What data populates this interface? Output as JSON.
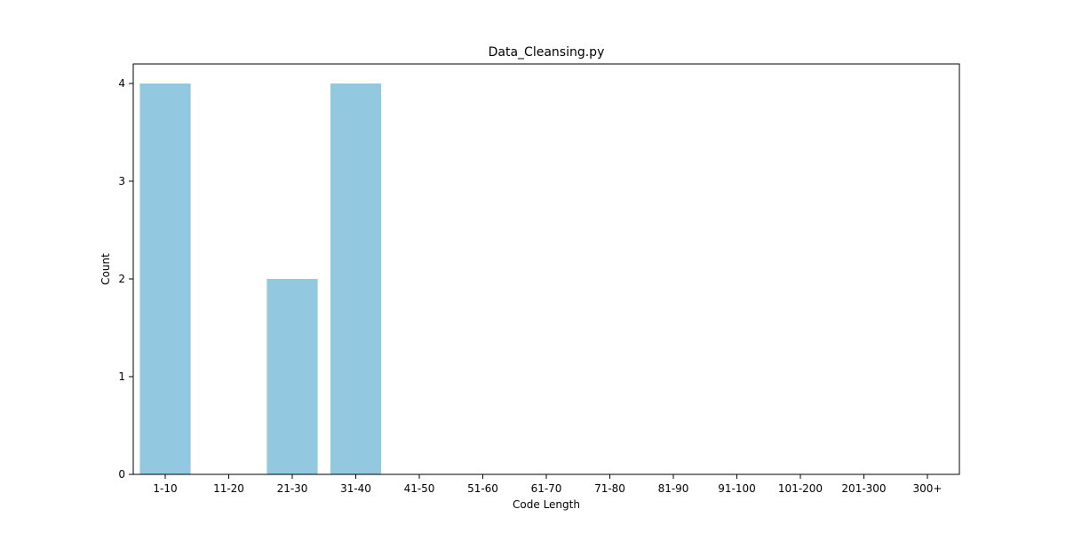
{
  "chart_data": {
    "type": "bar",
    "title": "Data_Cleansing.py",
    "xlabel": "Code Length",
    "ylabel": "Count",
    "categories": [
      "1-10",
      "11-20",
      "21-30",
      "31-40",
      "41-50",
      "51-60",
      "61-70",
      "71-80",
      "81-90",
      "91-100",
      "101-200",
      "201-300",
      "300+"
    ],
    "values": [
      4,
      0,
      2,
      4,
      0,
      0,
      0,
      0,
      0,
      0,
      0,
      0,
      0
    ],
    "yticks": [
      "0",
      "1",
      "2",
      "3",
      "4"
    ],
    "ylim": [
      0,
      4.2
    ],
    "bar_color": "#92c9e0",
    "grid": false,
    "legend": "none"
  }
}
